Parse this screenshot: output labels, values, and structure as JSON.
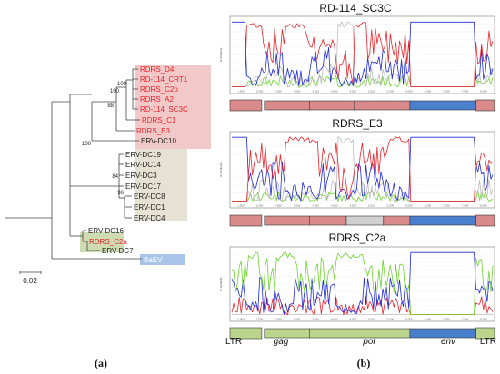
{
  "tree": {
    "tips": [
      {
        "label": "RDRS_D4",
        "color": "#e8232a"
      },
      {
        "label": "RD-114_CRT1",
        "color": "#e8232a"
      },
      {
        "label": "RDRS_C2b",
        "color": "#e8232a"
      },
      {
        "label": "RDRS_A2",
        "color": "#e8232a"
      },
      {
        "label": "RD-114_SC3C",
        "color": "#e8232a"
      },
      {
        "label": "RDRS_C1",
        "color": "#e8232a"
      },
      {
        "label": "RDRS_E3",
        "color": "#e8232a"
      },
      {
        "label": "ERV-DC10",
        "color": "#222222"
      },
      {
        "label": "ERV-DC19",
        "color": "#222222"
      },
      {
        "label": "ERV-DC14",
        "color": "#222222"
      },
      {
        "label": "ERV-DC3",
        "color": "#222222"
      },
      {
        "label": "ERV-DC17",
        "color": "#222222"
      },
      {
        "label": "ERV-DC8",
        "color": "#222222"
      },
      {
        "label": "ERV-DC1",
        "color": "#222222"
      },
      {
        "label": "ERV-DC4",
        "color": "#222222"
      },
      {
        "label": "ERV-DC16",
        "color": "#222222"
      },
      {
        "label": "RDRS_C2a",
        "color": "#e8232a"
      },
      {
        "label": "ERV-DC7",
        "color": "#222222"
      },
      {
        "label": "BaEV",
        "color": "#ffffff"
      }
    ],
    "bootstrap": [
      "100",
      "100",
      "88",
      "100",
      "84",
      "96"
    ],
    "scale_label": "0.02",
    "clade_colors": {
      "red": "#f2c9c9",
      "beige": "#e6e2d3",
      "green": "#cfdcb2",
      "blue": "#a9c4e8"
    }
  },
  "panels": [
    {
      "title": "RD-114_SC3C"
    },
    {
      "title": "RDRS_E3"
    },
    {
      "title": "RDRS_C2a"
    }
  ],
  "genome_labels": {
    "ltr_left": "LTR",
    "gag": "gag",
    "pol": "pol",
    "env": "env",
    "ltr_right": "LTR"
  },
  "ticks": [
    "1,500",
    "2,000",
    "2,500",
    "3,000",
    "3,500",
    "4,000",
    "4,500",
    "5,000",
    "5,500",
    "6,000",
    "6,500",
    "7,000",
    "7,500",
    "8,000"
  ],
  "y_axis_label": "% Similarity",
  "panel_labels": {
    "a": "(a)",
    "b": "(b)"
  },
  "segment_colors": {
    "red": "#d98a8a",
    "gray": "#d0d0d0",
    "blue": "#4a7fce",
    "green": "#bcd58c"
  },
  "line_colors": {
    "red": "#e8232a",
    "blue": "#1f2ad8",
    "gray": "#bdbdbd",
    "green": "#6fd331"
  }
}
